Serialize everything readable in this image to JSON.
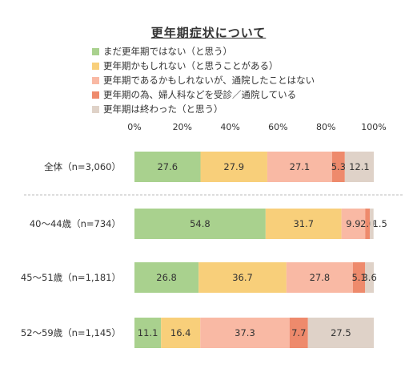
{
  "chart_data": {
    "type": "bar",
    "orientation": "horizontal-stacked-100",
    "title": "更年期症状について",
    "categories": [
      "全体（n=3,060）",
      "40～44歳（n=734）",
      "45～51歳（n=1,181）",
      "52～59歳（n=1,145）"
    ],
    "x_ticks": [
      "0%",
      "20%",
      "40%",
      "60%",
      "80%",
      "100%"
    ],
    "xlim": [
      0,
      100
    ],
    "legend_position": "top",
    "series": [
      {
        "name": "まだ更年期ではない（と思う）",
        "color": "#a9d18e",
        "values": [
          27.6,
          54.8,
          26.8,
          11.1
        ],
        "labels": [
          "27.6",
          "54.8",
          "26.8",
          "11.1"
        ]
      },
      {
        "name": "更年期かもしれない（と思うことがある）",
        "color": "#f8cf7a",
        "values": [
          27.9,
          31.7,
          36.7,
          16.4
        ],
        "labels": [
          "27.9",
          "31.7",
          "36.7",
          "16.4"
        ]
      },
      {
        "name": "更年期であるかもしれないが、通院したことはない",
        "color": "#f9b9a4",
        "values": [
          27.1,
          9.9,
          27.8,
          37.3
        ],
        "labels": [
          "27.1",
          "9.9",
          "27.8",
          "37.3"
        ]
      },
      {
        "name": "更年期の為、婦人科などを受診／通院している",
        "color": "#ee8a6c",
        "values": [
          5.3,
          2.0,
          5.1,
          7.7
        ],
        "labels": [
          "5.3",
          "2.0",
          "5.1",
          "7.7"
        ]
      },
      {
        "name": "更年期は終わった（と思う）",
        "color": "#dfd2c8",
        "values": [
          12.1,
          1.5,
          3.6,
          27.5
        ],
        "labels": [
          "12.1",
          "1.5",
          "3.6",
          "27.5"
        ]
      }
    ]
  }
}
